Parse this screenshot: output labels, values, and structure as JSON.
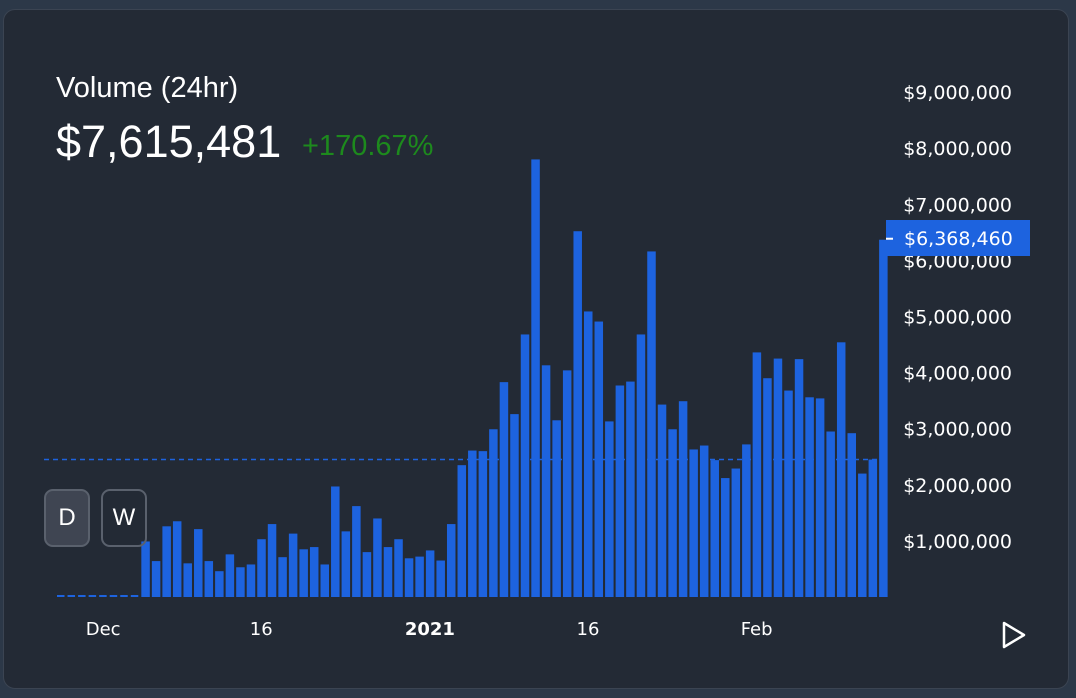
{
  "header": {
    "title": "Volume (24hr)",
    "value": "$7,615,481",
    "change": "+170.67%"
  },
  "buttons": {
    "daily": "D",
    "weekly": "W"
  },
  "colors": {
    "bar": "#1d63df",
    "change_positive": "#1d8a1d"
  },
  "chart_data": {
    "type": "bar",
    "title": "Volume (24hr)",
    "xlabel": "",
    "ylabel": "",
    "ylim": [
      0,
      9500000
    ],
    "x_start": "Nov 27 2020",
    "x_end": "Feb 13 2021",
    "x_ticks": [
      {
        "index": 4,
        "label": "Dec"
      },
      {
        "index": 19,
        "label": "16"
      },
      {
        "index": 35,
        "label": "2021"
      },
      {
        "index": 50,
        "label": "16"
      },
      {
        "index": 66,
        "label": "Feb"
      }
    ],
    "y_ticks": [
      {
        "value": 1000000,
        "label": "$1,000,000"
      },
      {
        "value": 2000000,
        "label": "$2,000,000"
      },
      {
        "value": 3000000,
        "label": "$3,000,000"
      },
      {
        "value": 4000000,
        "label": "$4,000,000"
      },
      {
        "value": 5000000,
        "label": "$5,000,000"
      },
      {
        "value": 6000000,
        "label": "$6,000,000"
      },
      {
        "value": 7000000,
        "label": "$7,000,000"
      },
      {
        "value": 8000000,
        "label": "$8,000,000"
      },
      {
        "value": 9000000,
        "label": "$9,000,000"
      }
    ],
    "values_millions": [
      0,
      0,
      0,
      0,
      0,
      0,
      0,
      0,
      0.99,
      0.64,
      1.26,
      1.35,
      0.6,
      1.21,
      0.64,
      0.46,
      0.76,
      0.53,
      0.58,
      1.03,
      1.3,
      0.71,
      1.13,
      0.85,
      0.89,
      0.58,
      1.97,
      1.17,
      1.62,
      0.8,
      1.4,
      0.89,
      1.03,
      0.69,
      0.72,
      0.83,
      0.65,
      1.3,
      2.35,
      2.61,
      2.6,
      2.99,
      3.83,
      3.26,
      4.68,
      7.8,
      4.13,
      3.15,
      4.04,
      6.52,
      5.09,
      4.91,
      3.13,
      3.77,
      3.84,
      4.68,
      6.16,
      3.43,
      2.99,
      3.49,
      2.63,
      2.7,
      2.44,
      2.12,
      2.29,
      2.72,
      4.36,
      3.9,
      4.25,
      3.68,
      4.24,
      3.56,
      3.54,
      2.95,
      4.54,
      2.92,
      2.2,
      2.45,
      6.36846
    ],
    "reference_line_millions": 2.45,
    "current_label": "$6,368,460",
    "grid": false
  }
}
